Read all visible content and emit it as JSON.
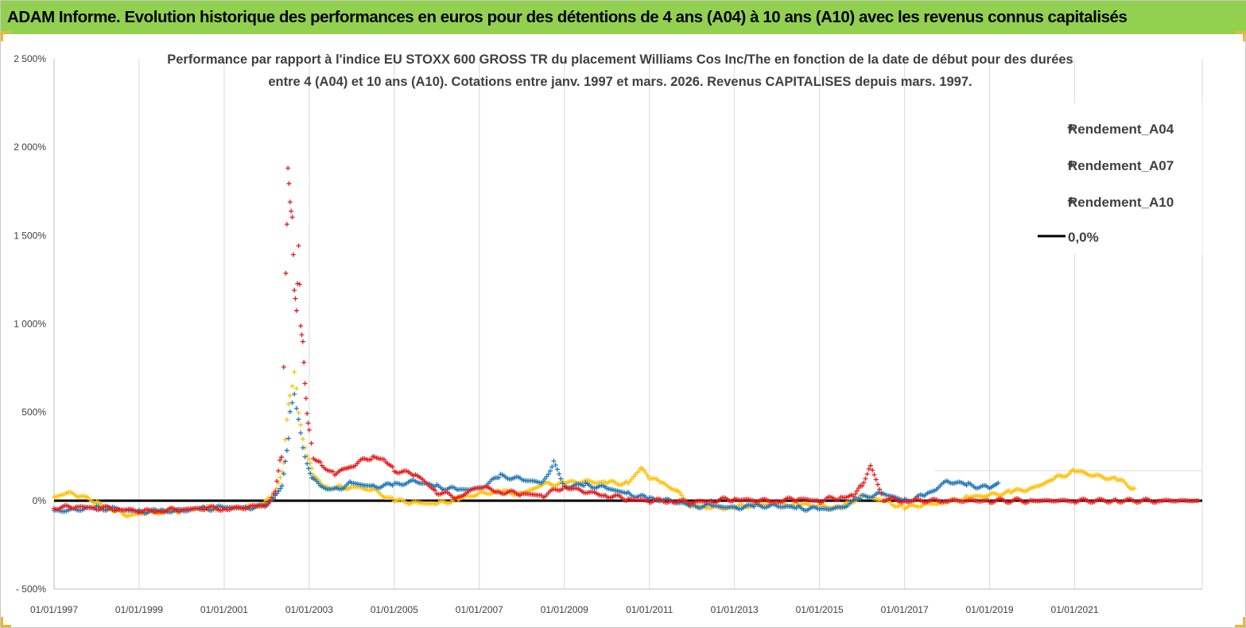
{
  "header": {
    "title": "ADAM Informe. Evolution historique des performances en euros pour des détentions de 4 ans (A04) à 10 ans (A10) avec les revenus connus capitalisés"
  },
  "chart_data": {
    "type": "scatter",
    "subtitle_lines": [
      "Performance par rapport à l'indice EU STOXX 600 GROSS TR  du placement Williams Cos Inc/The en fonction de la date de début pour des durées",
      "entre 4 (A04) et 10 ans (A10). Cotations entre janv. 1997 et mars. 2026. Revenus CAPITALISES depuis mars. 1997."
    ],
    "xlabel": "",
    "ylabel": "",
    "xlim": [
      "1997-01-01",
      "2023-12-31"
    ],
    "ylim": [
      -500,
      2500
    ],
    "y_ticks": [
      -500,
      0,
      500,
      1000,
      1500,
      2000,
      2500
    ],
    "y_tick_labels": [
      "- 500%",
      "0%",
      "500%",
      "1 000%",
      "1 500%",
      "2 000%",
      "2 500%"
    ],
    "x_tick_labels": [
      "01/01/1997",
      "01/01/1999",
      "01/01/2001",
      "01/01/2003",
      "01/01/2005",
      "01/01/2007",
      "01/01/2009",
      "01/01/2011",
      "01/01/2013",
      "01/01/2015",
      "01/01/2017",
      "01/01/2019",
      "01/01/2021"
    ],
    "x_tick_years": [
      1997,
      1999,
      2001,
      2003,
      2005,
      2007,
      2009,
      2011,
      2013,
      2015,
      2017,
      2019,
      2021
    ],
    "grid": "vertical",
    "legend_position": "top-right",
    "series": [
      {
        "name": "Rendement_A04",
        "color": "#ffc000",
        "marker": "plus",
        "x": [
          1997.0,
          1997.3,
          1997.6,
          1998.0,
          1998.4,
          1998.8,
          1999.2,
          1999.6,
          2000.0,
          2000.5,
          2001.0,
          2001.5,
          2001.9,
          2002.2,
          2002.4,
          2002.55,
          2002.65,
          2002.75,
          2002.85,
          2002.95,
          2003.1,
          2003.3,
          2003.6,
          2004.0,
          2004.5,
          2005.0,
          2005.5,
          2006.0,
          2006.5,
          2007.0,
          2007.5,
          2008.0,
          2008.5,
          2009.0,
          2009.5,
          2010.0,
          2010.5,
          2010.8,
          2011.0,
          2011.3,
          2011.6,
          2012.0,
          2012.5,
          2013.0,
          2013.5,
          2014.0,
          2014.5,
          2015.0,
          2015.5,
          2016.0,
          2016.5,
          2017.0,
          2017.5,
          2018.0,
          2018.5,
          2019.0,
          2019.5,
          2020.0,
          2020.5,
          2021.0,
          2021.5,
          2022.0,
          2022.4
        ],
        "y": [
          20,
          40,
          30,
          -10,
          -60,
          -80,
          -70,
          -60,
          -55,
          -45,
          -40,
          -40,
          -20,
          30,
          200,
          600,
          700,
          500,
          350,
          250,
          150,
          80,
          70,
          80,
          60,
          0,
          -10,
          -20,
          10,
          40,
          50,
          40,
          90,
          100,
          110,
          100,
          100,
          180,
          130,
          100,
          60,
          -30,
          -40,
          -40,
          -20,
          -20,
          -20,
          -30,
          -40,
          30,
          0,
          -40,
          -20,
          -10,
          20,
          30,
          50,
          70,
          120,
          170,
          140,
          120,
          70
        ]
      },
      {
        "name": "Rendement_A07",
        "color": "#1f77b4",
        "marker": "plus",
        "x": [
          1997.0,
          1997.5,
          1998.0,
          1998.5,
          1999.0,
          1999.5,
          2000.0,
          2000.5,
          2001.0,
          2001.5,
          2002.0,
          2002.2,
          2002.4,
          2002.55,
          2002.65,
          2002.75,
          2002.85,
          2002.95,
          2003.1,
          2003.3,
          2003.6,
          2004.0,
          2004.5,
          2005.0,
          2005.5,
          2006.0,
          2006.5,
          2007.0,
          2007.5,
          2008.0,
          2008.5,
          2008.75,
          2009.0,
          2009.5,
          2010.0,
          2010.5,
          2011.0,
          2011.5,
          2012.0,
          2012.5,
          2013.0,
          2013.5,
          2014.0,
          2014.5,
          2015.0,
          2015.5,
          2016.0,
          2016.5,
          2017.0,
          2017.5,
          2018.0,
          2018.5,
          2019.0,
          2019.2
        ],
        "y": [
          -60,
          -50,
          -40,
          -50,
          -60,
          -60,
          -55,
          -45,
          -40,
          -40,
          -30,
          30,
          100,
          500,
          600,
          450,
          300,
          200,
          120,
          80,
          60,
          100,
          80,
          90,
          110,
          80,
          60,
          70,
          140,
          120,
          100,
          220,
          80,
          90,
          70,
          40,
          10,
          0,
          -30,
          -30,
          -40,
          -30,
          -30,
          -40,
          -50,
          -40,
          20,
          40,
          0,
          30,
          110,
          90,
          70,
          100
        ]
      },
      {
        "name": "Rendement_A10",
        "color": "#e41a1c",
        "marker": "plus",
        "x": [
          1997.0,
          1997.5,
          1998.0,
          1998.5,
          1999.0,
          1999.5,
          2000.0,
          2000.5,
          2001.0,
          2001.5,
          2002.0,
          2002.2,
          2002.35,
          2002.45,
          2002.5,
          2002.55,
          2002.6,
          2002.65,
          2002.7,
          2002.75,
          2002.8,
          2002.85,
          2002.9,
          2002.95,
          2003.0,
          2003.1,
          2003.3,
          2003.6,
          2004.0,
          2004.5,
          2004.8,
          2005.0,
          2005.5,
          2006.0,
          2006.5,
          2007.0,
          2007.5,
          2008.0,
          2008.5,
          2009.0,
          2009.5,
          2010.0,
          2010.5,
          2011.0,
          2011.5,
          2012.0,
          2012.5,
          2013.0,
          2013.5,
          2014.0,
          2014.5,
          2015.0,
          2015.5,
          2015.8,
          2016.0,
          2016.2,
          2016.5,
          2017.0,
          2018.0,
          2019.0,
          2020.0,
          2021.0,
          2022.0,
          2023.0,
          2023.9
        ],
        "y": [
          -40,
          -35,
          -40,
          -45,
          -60,
          -55,
          -50,
          -40,
          -45,
          -40,
          -20,
          50,
          300,
          1300,
          1900,
          1700,
          1600,
          1200,
          1100,
          1450,
          1000,
          900,
          700,
          500,
          400,
          250,
          200,
          150,
          200,
          250,
          230,
          170,
          150,
          50,
          20,
          80,
          50,
          40,
          30,
          80,
          50,
          30,
          10,
          0,
          0,
          -10,
          0,
          10,
          0,
          0,
          10,
          0,
          20,
          30,
          90,
          200,
          10,
          0,
          0,
          0,
          0,
          0,
          0,
          0,
          0
        ]
      }
    ],
    "reference_line": {
      "name": "0,0%",
      "value": 0,
      "color": "#000000"
    }
  }
}
